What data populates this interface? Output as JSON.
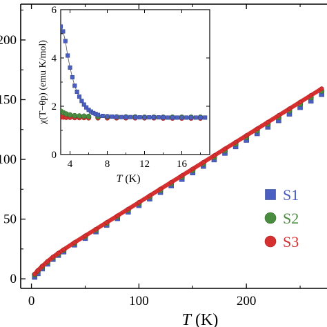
{
  "chart_data": [
    {
      "type": "scatter",
      "title": "",
      "xlabel": "T (K)",
      "ylabel": "",
      "xlim": [
        -10,
        275
      ],
      "ylim": [
        -8,
        230
      ],
      "x_ticks": [
        0,
        100,
        200
      ],
      "y_ticks": [
        0,
        50,
        100,
        150,
        200
      ],
      "x_tick_labels": [
        "0",
        "100",
        "200"
      ],
      "y_tick_labels": [
        "0",
        "50",
        "100",
        "150",
        "200"
      ],
      "legend_position": "lower-right",
      "grid": false,
      "series": [
        {
          "name": "S1",
          "marker": "square",
          "color": "#4a5fc1",
          "x": [
            3,
            6,
            10,
            15,
            20,
            25,
            30,
            40,
            50,
            60,
            70,
            80,
            90,
            100,
            110,
            120,
            130,
            140,
            150,
            160,
            170,
            180,
            190,
            200,
            210,
            220,
            230,
            240,
            250,
            260,
            270
          ],
          "y": [
            1.5,
            4.5,
            8.5,
            12.5,
            16.4,
            19.8,
            22.7,
            28.5,
            34.0,
            39.5,
            45.0,
            50.6,
            56.1,
            61.5,
            67.0,
            72.5,
            78.0,
            83.4,
            88.9,
            94.4,
            99.8,
            105.3,
            110.8,
            116.2,
            121.7,
            127.2,
            132.6,
            138.1,
            143.6,
            149.0,
            154.5
          ]
        },
        {
          "name": "S2",
          "marker": "circle",
          "color": "#4a8c3f",
          "x": [
            3,
            6,
            10,
            15,
            20,
            25,
            30,
            40,
            50,
            60,
            70,
            80,
            90,
            100,
            110,
            120,
            130,
            140,
            150,
            160,
            170,
            180,
            190,
            200,
            210,
            220,
            230,
            240,
            250,
            260,
            270
          ],
          "y": [
            3.5,
            6.5,
            10.0,
            14.0,
            17.7,
            20.9,
            23.9,
            29.7,
            35.3,
            40.8,
            46.4,
            51.9,
            57.5,
            63.0,
            68.6,
            74.1,
            79.7,
            85.2,
            90.8,
            96.3,
            101.9,
            107.4,
            113.0,
            118.5,
            124.1,
            129.6,
            135.2,
            140.7,
            146.3,
            151.8,
            157.4
          ]
        },
        {
          "name": "S3",
          "marker": "circle",
          "color": "#d62f2f",
          "x": [
            3,
            6,
            10,
            15,
            20,
            25,
            30,
            40,
            50,
            60,
            70,
            80,
            90,
            100,
            110,
            120,
            130,
            140,
            150,
            160,
            170,
            180,
            190,
            200,
            210,
            220,
            230,
            240,
            250,
            260,
            270
          ],
          "y": [
            4.0,
            7.0,
            10.6,
            14.6,
            18.3,
            21.5,
            24.5,
            30.4,
            36.0,
            41.6,
            47.2,
            52.8,
            58.4,
            64.0,
            69.6,
            75.2,
            80.8,
            86.4,
            92.0,
            97.6,
            103.2,
            108.8,
            114.4,
            120.0,
            125.6,
            131.2,
            136.8,
            142.4,
            148.0,
            153.6,
            159.2
          ]
        }
      ]
    },
    {
      "type": "scatter",
      "title": "",
      "xlabel": "T (K)",
      "ylabel": "χ(T−θp) (emu K/mol)",
      "xlim": [
        3,
        19
      ],
      "ylim": [
        0,
        6
      ],
      "x_ticks": [
        4,
        8,
        12,
        16
      ],
      "y_ticks": [
        0,
        2,
        4,
        6
      ],
      "x_tick_labels": [
        "4",
        "8",
        "12",
        "16"
      ],
      "y_tick_labels": [
        "0",
        "2",
        "4",
        "6"
      ],
      "grid": false,
      "series": [
        {
          "name": "S1",
          "marker": "square",
          "color": "#4a5fc1",
          "x": [
            3.0,
            3.25,
            3.5,
            3.75,
            4.0,
            4.25,
            4.5,
            4.75,
            5.0,
            5.25,
            5.5,
            5.75,
            6.0,
            6.25,
            6.5,
            6.75,
            7.0,
            7.5,
            8.0,
            8.5,
            9.0,
            9.5,
            10.0,
            10.5,
            11.0,
            11.5,
            12.0,
            12.5,
            13.0,
            13.5,
            14.0,
            14.5,
            15.0,
            15.5,
            16.0,
            16.5,
            17.0,
            17.5,
            18.0,
            18.5
          ],
          "y": [
            5.3,
            5.1,
            4.7,
            4.1,
            3.6,
            3.2,
            2.85,
            2.6,
            2.4,
            2.22,
            2.07,
            1.95,
            1.85,
            1.78,
            1.72,
            1.68,
            1.64,
            1.6,
            1.58,
            1.57,
            1.56,
            1.55,
            1.55,
            1.55,
            1.54,
            1.54,
            1.54,
            1.54,
            1.54,
            1.54,
            1.54,
            1.53,
            1.53,
            1.53,
            1.53,
            1.53,
            1.53,
            1.53,
            1.53,
            1.53
          ]
        },
        {
          "name": "S2",
          "marker": "circle",
          "color": "#4a8c3f",
          "x": [
            3.0,
            3.3,
            3.6,
            4.0,
            4.5,
            5.0,
            5.5,
            6.0,
            7.0,
            8.0,
            9.0,
            10.0,
            11.0,
            12.0,
            13.0,
            14.0,
            15.0,
            16.0,
            17.0,
            18.0
          ],
          "y": [
            1.8,
            1.73,
            1.68,
            1.64,
            1.61,
            1.6,
            1.59,
            1.58,
            1.57,
            1.57,
            1.56,
            1.56,
            1.56,
            1.55,
            1.55,
            1.55,
            1.55,
            1.55,
            1.55,
            1.55
          ]
        },
        {
          "name": "S3",
          "marker": "circle",
          "color": "#d62f2f",
          "x": [
            3.0,
            3.3,
            3.6,
            4.0,
            4.5,
            5.0,
            5.5,
            6.0,
            7.0,
            8.0,
            9.0,
            10.0,
            11.0,
            12.0,
            13.0,
            14.0,
            15.0,
            16.0,
            17.0,
            18.0
          ],
          "y": [
            1.55,
            1.55,
            1.54,
            1.54,
            1.53,
            1.53,
            1.53,
            1.52,
            1.52,
            1.52,
            1.52,
            1.52,
            1.52,
            1.52,
            1.52,
            1.51,
            1.51,
            1.51,
            1.51,
            1.51
          ]
        }
      ]
    }
  ]
}
